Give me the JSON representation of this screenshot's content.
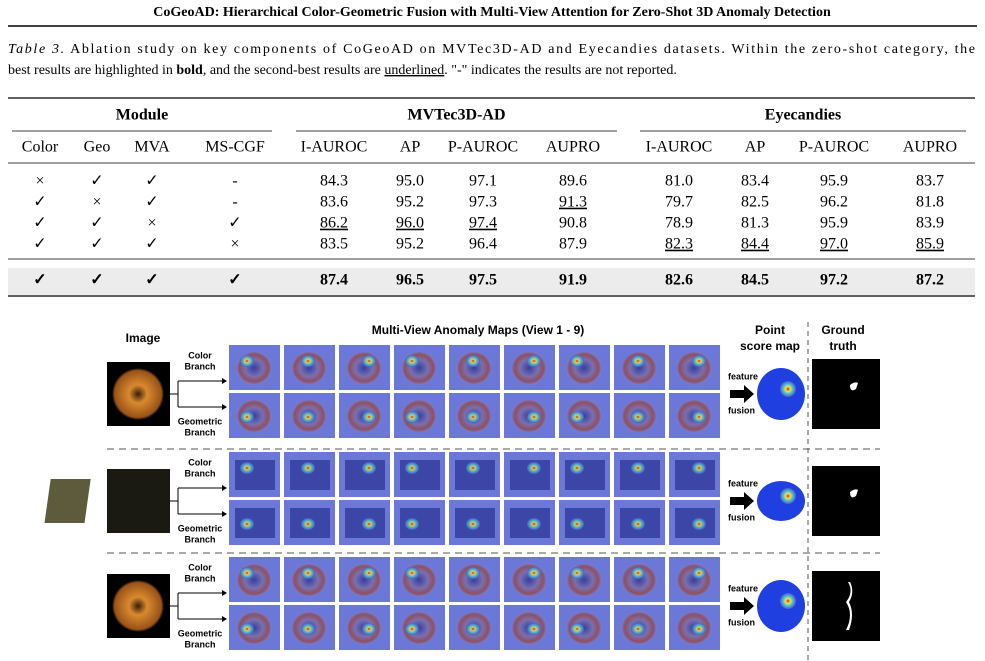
{
  "header": {
    "title": "CoGeoAD: Hierarchical Color-Geometric Fusion with Multi-View Attention for Zero-Shot 3D Anomaly Detection"
  },
  "caption": {
    "label": "Table 3.",
    "parts": [
      "Ablation study on key components of CoGeoAD on MVTec3D-AD and Eyecandies datasets. Within the zero-shot category, the",
      "best results are highlighted in ",
      "bold",
      ", and the second-best results are ",
      "underlined",
      ". \"-\" indicates the results are not reported."
    ]
  },
  "table": {
    "groups": [
      "Module",
      "MVTec3D-AD",
      "Eyecandies"
    ],
    "columns": [
      "Color",
      "Geo",
      "MVA",
      "MS-CGF",
      "I-AUROC",
      "AP",
      "P-AUROC",
      "AUPRO",
      "I-AUROC",
      "AP",
      "P-AUROC",
      "AUPRO"
    ],
    "rows": [
      {
        "cells": [
          "×",
          "✓",
          "✓",
          "-",
          "84.3",
          "95.0",
          "97.1",
          "89.6",
          "81.0",
          "83.4",
          "95.9",
          "83.7"
        ]
      },
      {
        "cells": [
          "✓",
          "×",
          "✓",
          "-",
          "83.6",
          "95.2",
          "97.3",
          {
            "text": "91.3",
            "underline": true
          },
          "79.7",
          "82.5",
          "96.2",
          "81.8"
        ]
      },
      {
        "cells": [
          "✓",
          "✓",
          "×",
          "✓",
          {
            "text": "86.2",
            "underline": true
          },
          {
            "text": "96.0",
            "underline": true
          },
          {
            "text": "97.4",
            "underline": true
          },
          "90.8",
          "78.9",
          "81.3",
          "95.9",
          "83.9"
        ]
      },
      {
        "cells": [
          "✓",
          "✓",
          "✓",
          "×",
          "83.5",
          "95.2",
          "96.4",
          "87.9",
          {
            "text": "82.3",
            "underline": true
          },
          {
            "text": "84.4",
            "underline": true
          },
          {
            "text": "97.0",
            "underline": true
          },
          {
            "text": "85.9",
            "underline": true
          }
        ]
      },
      {
        "cells": [
          "✓",
          "✓",
          "✓",
          "✓",
          "87.4",
          "96.5",
          "97.5",
          "91.9",
          "82.6",
          "84.5",
          "97.2",
          "87.2"
        ],
        "bold": true,
        "highlight": true
      }
    ]
  },
  "figure": {
    "image_label": "Image",
    "maps_title": "Multi-View Anomaly Maps (View 1 - 9)",
    "point_label": [
      "Point",
      "score map"
    ],
    "truth_label": [
      "Ground",
      "truth"
    ],
    "color_branch": [
      "Color",
      "Branch"
    ],
    "geometric_branch": [
      "Geometric",
      "Branch"
    ],
    "feature": "feature",
    "fusion": "fusion"
  }
}
